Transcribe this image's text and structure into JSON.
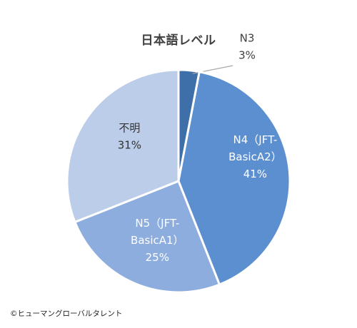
{
  "chart_data": {
    "type": "pie",
    "title": "日本語レベル",
    "start_angle_deg": 0,
    "direction": "clockwise",
    "slices": [
      {
        "label": "N3",
        "label_lines": [
          "N3"
        ],
        "value": 3,
        "value_label": "3%",
        "color": "#3f6fa8",
        "label_placement": "outside"
      },
      {
        "label": "N4（JFT-BasicA2）",
        "label_lines": [
          "N4（JFT-",
          "BasicA2）"
        ],
        "value": 41,
        "value_label": "41%",
        "color": "#5b8fd0",
        "label_placement": "inside",
        "label_color": "#ffffff"
      },
      {
        "label": "N5（JFT-BasicA1）",
        "label_lines": [
          "N5（JFT-",
          "BasicA1）"
        ],
        "value": 25,
        "value_label": "25%",
        "color": "#8cadde",
        "label_placement": "inside",
        "label_color": "#ffffff"
      },
      {
        "label": "不明",
        "label_lines": [
          "不明"
        ],
        "value": 31,
        "value_label": "31%",
        "color": "#bccde9",
        "label_placement": "inside",
        "label_color": "#333333"
      }
    ],
    "legend": "none"
  },
  "footer": {
    "copyright": "©ヒューマングローバルタレント"
  }
}
